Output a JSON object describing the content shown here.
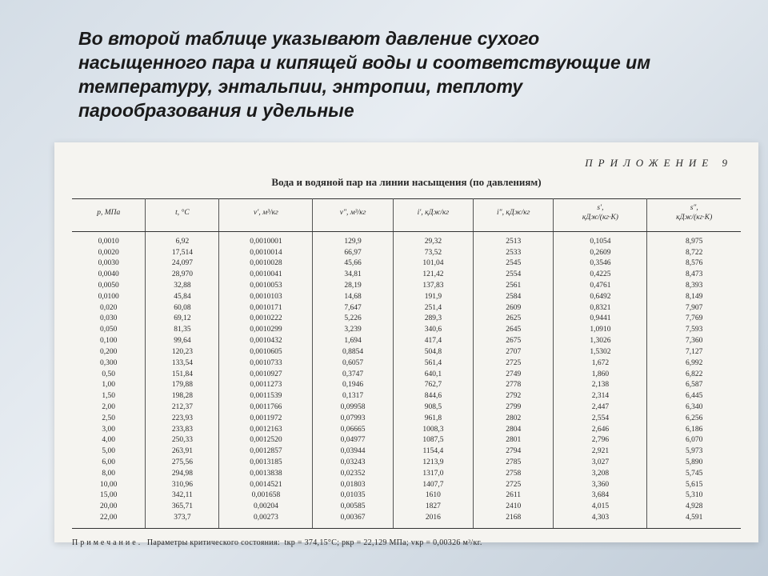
{
  "description_text": "Во второй таблице указывают давление сухого насыщенного пара и кипящей воды и соответствующие им температуру, энтальпии, энтропии, теплоту парообразования и удельные",
  "appendix_label": "ПРИЛОЖЕНИЕ 9",
  "table_title": "Вода и водяной пар на линии насыщения (по давлениям)",
  "colors": {
    "bg_grad_1": "#d4dde6",
    "bg_grad_2": "#e8edf2",
    "bg_grad_3": "#c0ccd8",
    "paper": "#f5f4f0",
    "text": "#2a2a2a",
    "border": "#333333"
  },
  "typography": {
    "desc_fontsize": 23,
    "title_fontsize": 13,
    "cell_fontsize": 9.5,
    "footnote_fontsize": 10
  },
  "columns": [
    {
      "header": "p, МПа",
      "width": "11%"
    },
    {
      "header": "t, °C",
      "width": "11%"
    },
    {
      "header": "v′, м³/кг",
      "width": "14%"
    },
    {
      "header": "v″, м³/кг",
      "width": "12%"
    },
    {
      "header": "i′, кДж/кг",
      "width": "12%"
    },
    {
      "header": "i″, кДж/кг",
      "width": "12%"
    },
    {
      "header": "s′,\nкДж/(кг·К)",
      "width": "14%"
    },
    {
      "header": "s″,\nкДж/(кг·К)",
      "width": "14%"
    }
  ],
  "rows": [
    [
      "0,0010",
      "6,92",
      "0,0010001",
      "129,9",
      "29,32",
      "2513",
      "0,1054",
      "8,975"
    ],
    [
      "0,0020",
      "17,514",
      "0,0010014",
      "66,97",
      "73,52",
      "2533",
      "0,2609",
      "8,722"
    ],
    [
      "0,0030",
      "24,097",
      "0,0010028",
      "45,66",
      "101,04",
      "2545",
      "0,3546",
      "8,576"
    ],
    [
      "0,0040",
      "28,970",
      "0,0010041",
      "34,81",
      "121,42",
      "2554",
      "0,4225",
      "8,473"
    ],
    [
      "0,0050",
      "32,88",
      "0,0010053",
      "28,19",
      "137,83",
      "2561",
      "0,4761",
      "8,393"
    ],
    [
      "0,0100",
      "45,84",
      "0,0010103",
      "14,68",
      "191,9",
      "2584",
      "0,6492",
      "8,149"
    ],
    [
      "0,020",
      "60,08",
      "0,0010171",
      "7,647",
      "251,4",
      "2609",
      "0,8321",
      "7,907"
    ],
    [
      "0,030",
      "69,12",
      "0,0010222",
      "5,226",
      "289,3",
      "2625",
      "0,9441",
      "7,769"
    ],
    [
      "0,050",
      "81,35",
      "0,0010299",
      "3,239",
      "340,6",
      "2645",
      "1,0910",
      "7,593"
    ],
    [
      "0,100",
      "99,64",
      "0,0010432",
      "1,694",
      "417,4",
      "2675",
      "1,3026",
      "7,360"
    ],
    [
      "0,200",
      "120,23",
      "0,0010605",
      "0,8854",
      "504,8",
      "2707",
      "1,5302",
      "7,127"
    ],
    [
      "0,300",
      "133,54",
      "0,0010733",
      "0,6057",
      "561,4",
      "2725",
      "1,672",
      "6,992"
    ],
    [
      "0,50",
      "151,84",
      "0,0010927",
      "0,3747",
      "640,1",
      "2749",
      "1,860",
      "6,822"
    ],
    [
      "1,00",
      "179,88",
      "0,0011273",
      "0,1946",
      "762,7",
      "2778",
      "2,138",
      "6,587"
    ],
    [
      "1,50",
      "198,28",
      "0,0011539",
      "0,1317",
      "844,6",
      "2792",
      "2,314",
      "6,445"
    ],
    [
      "2,00",
      "212,37",
      "0,0011766",
      "0,09958",
      "908,5",
      "2799",
      "2,447",
      "6,340"
    ],
    [
      "2,50",
      "223,93",
      "0,0011972",
      "0,07993",
      "961,8",
      "2802",
      "2,554",
      "6,256"
    ],
    [
      "3,00",
      "233,83",
      "0,0012163",
      "0,06665",
      "1008,3",
      "2804",
      "2,646",
      "6,186"
    ],
    [
      "4,00",
      "250,33",
      "0,0012520",
      "0,04977",
      "1087,5",
      "2801",
      "2,796",
      "6,070"
    ],
    [
      "5,00",
      "263,91",
      "0,0012857",
      "0,03944",
      "1154,4",
      "2794",
      "2,921",
      "5,973"
    ],
    [
      "6,00",
      "275,56",
      "0,0013185",
      "0,03243",
      "1213,9",
      "2785",
      "3,027",
      "5,890"
    ],
    [
      "8,00",
      "294,98",
      "0,0013838",
      "0,02352",
      "1317,0",
      "2758",
      "3,208",
      "5,745"
    ],
    [
      "10,00",
      "310,96",
      "0,0014521",
      "0,01803",
      "1407,7",
      "2725",
      "3,360",
      "5,615"
    ],
    [
      "15,00",
      "342,11",
      "0,001658",
      "0,01035",
      "1610",
      "2611",
      "3,684",
      "5,310"
    ],
    [
      "20,00",
      "365,71",
      "0,00204",
      "0,00585",
      "1827",
      "2410",
      "4,015",
      "4,928"
    ],
    [
      "22,00",
      "373,7",
      "0,00273",
      "0,00367",
      "2016",
      "2168",
      "4,303",
      "4,591"
    ]
  ],
  "footnote_label": "Примечание.",
  "footnote_text": "Параметры критического состояния:",
  "footnote_values": "tкр = 374,15°C; pкр = 22,129 МПа; vкр = 0,00326 м³/кг."
}
